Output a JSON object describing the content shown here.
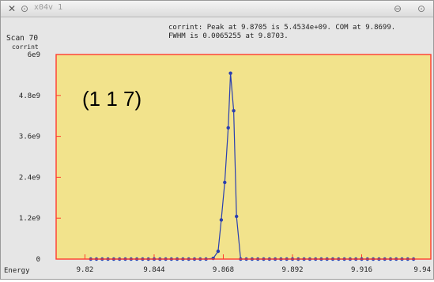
{
  "window": {
    "title": "x04v 1",
    "close_icon": "close-x-icon",
    "app_icon": "circle-target-icon",
    "minimize_icon": "circle-minimize-icon",
    "maximize_icon": "circle-maximize-icon"
  },
  "header": {
    "scan_label": "Scan 70",
    "info_line1": "corrint: Peak at 9.8705 is 5.4534e+09.  COM at 9.8699.",
    "info_line2": "FWHM is 0.0065255 at 9.8703."
  },
  "colors": {
    "plot_bg": "#f2e38c",
    "frame": "#ff3b2f",
    "series": "#2a3fb0"
  },
  "chart_data": {
    "type": "line",
    "annotation": "(1 1 7)",
    "xlabel": "Energy",
    "ylabel": "corrint",
    "xlim": [
      9.81,
      9.94
    ],
    "ylim": [
      0,
      6000000000
    ],
    "x_ticks": [
      9.82,
      9.844,
      9.868,
      9.892,
      9.916,
      9.94
    ],
    "x_tick_labels": [
      "9.82",
      "9.844",
      "9.868",
      "9.892",
      "9.916",
      "9.94"
    ],
    "y_ticks": [
      0,
      1200000000,
      2400000000,
      3600000000,
      4800000000,
      6000000000
    ],
    "y_tick_labels": [
      "0",
      "1.2e9",
      "2.4e9",
      "3.6e9",
      "4.8e9",
      "6e9"
    ],
    "grid": false,
    "series": [
      {
        "x": [
          9.822,
          9.824,
          9.826,
          9.828,
          9.83,
          9.832,
          9.834,
          9.836,
          9.838,
          9.84,
          9.842,
          9.844,
          9.846,
          9.848,
          9.85,
          9.852,
          9.854,
          9.856,
          9.858,
          9.86,
          9.862,
          9.8645,
          9.8662,
          9.8673,
          9.8685,
          9.8697,
          9.8705,
          9.8716,
          9.8726,
          9.874,
          9.876,
          9.878,
          9.88,
          9.882,
          9.884,
          9.886,
          9.888,
          9.89,
          9.892,
          9.894,
          9.896,
          9.898,
          9.9,
          9.902,
          9.904,
          9.906,
          9.908,
          9.91,
          9.912,
          9.914,
          9.916,
          9.918,
          9.92,
          9.922,
          9.924,
          9.926,
          9.928,
          9.93,
          9.932,
          9.934
        ],
        "y": [
          0,
          0,
          0,
          0,
          0,
          0,
          0,
          0,
          0,
          0,
          0,
          0,
          0,
          0,
          0,
          0,
          0,
          0,
          0,
          0,
          0,
          20000000,
          230000000,
          1150000000,
          2250000000,
          3850000000,
          5450000000,
          4350000000,
          1250000000,
          0,
          0,
          0,
          0,
          0,
          0,
          0,
          0,
          0,
          0,
          0,
          0,
          0,
          0,
          0,
          0,
          0,
          0,
          0,
          0,
          0,
          0,
          0,
          0,
          0,
          0,
          0,
          0,
          0,
          0,
          0
        ]
      }
    ]
  }
}
